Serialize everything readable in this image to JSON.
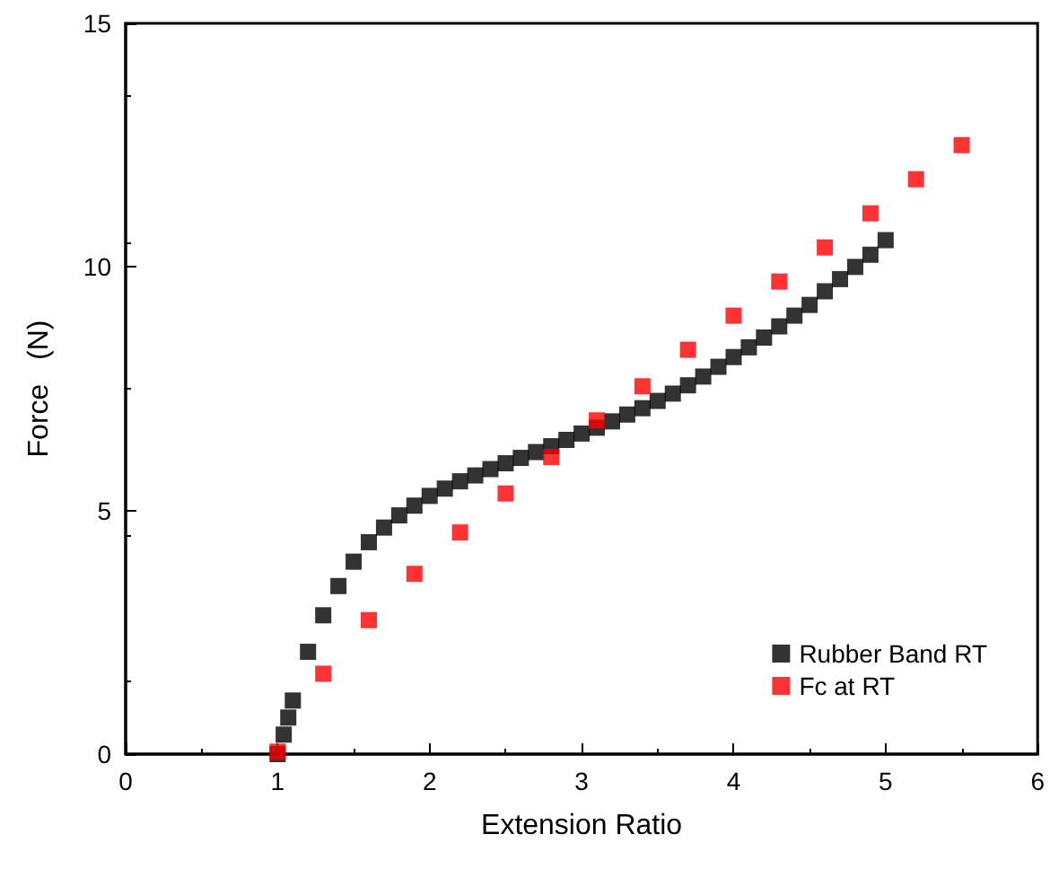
{
  "chart_data": {
    "type": "scatter",
    "xlabel": "Extension Ratio",
    "ylabel": "Force   (N)",
    "xlim": [
      0,
      6
    ],
    "xticks": [
      0,
      1,
      2,
      3,
      4,
      5,
      6
    ],
    "ylim": [
      0,
      15
    ],
    "yticks": [
      0,
      5,
      10,
      15
    ],
    "grid": false,
    "legend": "bottom right",
    "marker": "square",
    "series": [
      {
        "name": "Rubber Band RT",
        "color": "#000000",
        "x": [
          1.0,
          1.04,
          1.07,
          1.1,
          1.2,
          1.3,
          1.4,
          1.5,
          1.6,
          1.7,
          1.8,
          1.9,
          2.0,
          2.1,
          2.2,
          2.3,
          2.4,
          2.5,
          2.6,
          2.7,
          2.8,
          2.9,
          3.0,
          3.1,
          3.2,
          3.3,
          3.4,
          3.5,
          3.6,
          3.7,
          3.8,
          3.9,
          4.0,
          4.1,
          4.2,
          4.3,
          4.4,
          4.5,
          4.6,
          4.7,
          4.8,
          4.9,
          5.0
        ],
        "values": [
          0,
          0.4,
          0.75,
          1.1,
          2.1,
          2.85,
          3.45,
          3.95,
          4.35,
          4.65,
          4.9,
          5.1,
          5.3,
          5.45,
          5.6,
          5.72,
          5.85,
          5.97,
          6.08,
          6.2,
          6.32,
          6.45,
          6.58,
          6.7,
          6.83,
          6.97,
          7.1,
          7.25,
          7.4,
          7.57,
          7.75,
          7.95,
          8.15,
          8.35,
          8.55,
          8.78,
          9.0,
          9.22,
          9.5,
          9.75,
          10.0,
          10.25,
          10.55
        ]
      },
      {
        "name": "Fc at RT",
        "color": "#ff0000",
        "x": [
          1.0,
          1.3,
          1.6,
          1.9,
          2.2,
          2.5,
          2.8,
          3.1,
          3.4,
          3.7,
          4.0,
          4.3,
          4.6,
          4.9,
          5.2,
          5.5
        ],
        "values": [
          0.05,
          1.65,
          2.75,
          3.7,
          4.55,
          5.35,
          6.1,
          6.85,
          7.55,
          8.3,
          9.0,
          9.7,
          10.4,
          11.1,
          11.8,
          12.5
        ]
      }
    ]
  }
}
